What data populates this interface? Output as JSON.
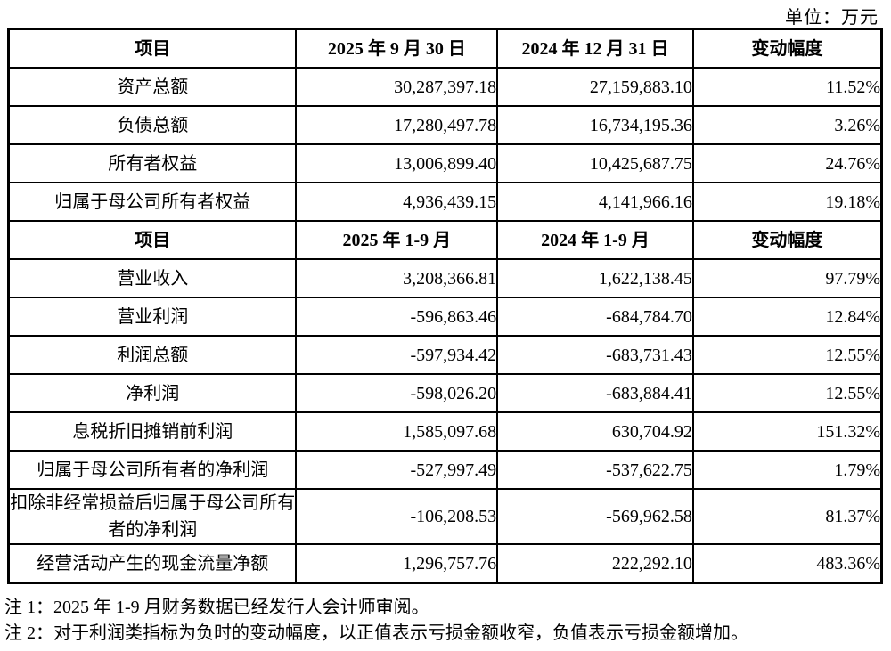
{
  "unit_label": "单位：万元",
  "table": {
    "sections": [
      {
        "header": [
          "项目",
          "2025 年 9 月 30 日",
          "2024 年 12 月 31 日",
          "变动幅度"
        ],
        "rows": [
          [
            "资产总额",
            "30,287,397.18",
            "27,159,883.10",
            "11.52%"
          ],
          [
            "负债总额",
            "17,280,497.78",
            "16,734,195.36",
            "3.26%"
          ],
          [
            "所有者权益",
            "13,006,899.40",
            "10,425,687.75",
            "24.76%"
          ],
          [
            "归属于母公司所有者权益",
            "4,936,439.15",
            "4,141,966.16",
            "19.18%"
          ]
        ]
      },
      {
        "header": [
          "项目",
          "2025 年 1-9 月",
          "2024 年 1-9 月",
          "变动幅度"
        ],
        "rows": [
          [
            "营业收入",
            "3,208,366.81",
            "1,622,138.45",
            "97.79%"
          ],
          [
            "营业利润",
            "-596,863.46",
            "-684,784.70",
            "12.84%"
          ],
          [
            "利润总额",
            "-597,934.42",
            "-683,731.43",
            "12.55%"
          ],
          [
            "净利润",
            "-598,026.20",
            "-683,884.41",
            "12.55%"
          ],
          [
            "息税折旧摊销前利润",
            "1,585,097.68",
            "630,704.92",
            "151.32%"
          ],
          [
            "归属于母公司所有者的净利润",
            "-527,997.49",
            "-537,622.75",
            "1.79%"
          ],
          [
            "扣除非经常损益后归属于母公司所有者的净利润",
            "-106,208.53",
            "-569,962.58",
            "81.37%"
          ],
          [
            "经营活动产生的现金流量净额",
            "1,296,757.76",
            "222,292.10",
            "483.36%"
          ]
        ]
      }
    ]
  },
  "notes": [
    "注 1：2025 年 1-9 月财务数据已经发行人会计师审阅。",
    "注 2：对于利润类指标为负时的变动幅度，以正值表示亏损金额收窄，负值表示亏损金额增加。"
  ]
}
